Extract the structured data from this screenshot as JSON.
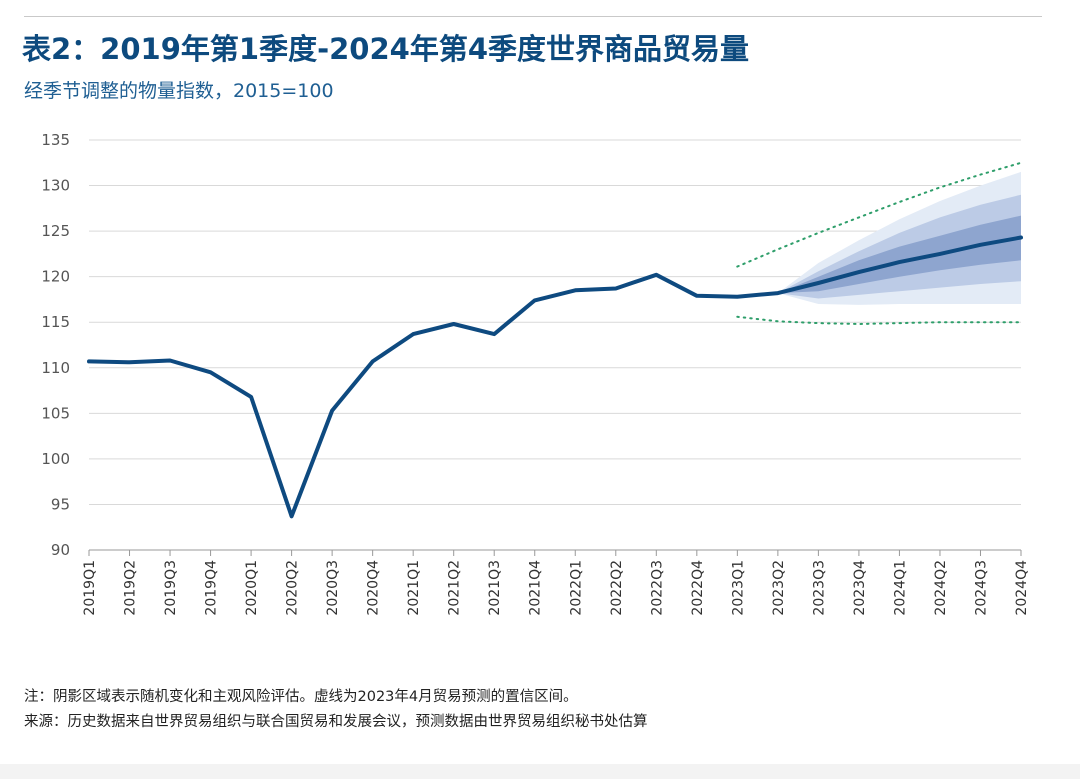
{
  "header": {
    "title": "表2：2019年第1季度-2024年第4季度世界商品贸易量",
    "subtitle": "经季节调整的物量指数，2015=100"
  },
  "footer": {
    "note": "注：阴影区域表示随机变化和主观风险评估。虚线为2023年4月贸易预测的置信区间。",
    "source": "来源：历史数据来自世界贸易组织与联合国贸易和发展会议，预测数据由世界贸易组织秘书处估算"
  },
  "colors": {
    "line": "#0e4a80",
    "band_outer": "#e3ebf6",
    "band_mid": "#bccbe6",
    "band_inner": "#8ea5cf",
    "dotted": "#2e9e6a",
    "grid": "#d9d9d9",
    "axis": "#999999",
    "tick_text": "#555555"
  },
  "chart_data": {
    "type": "line",
    "categories": [
      "2019Q1",
      "2019Q2",
      "2019Q3",
      "2019Q4",
      "2020Q1",
      "2020Q2",
      "2020Q3",
      "2020Q4",
      "2021Q1",
      "2021Q2",
      "2021Q3",
      "2021Q4",
      "2022Q1",
      "2022Q2",
      "2022Q3",
      "2022Q4",
      "2023Q1",
      "2023Q2",
      "2023Q3",
      "2023Q4",
      "2024Q1",
      "2024Q2",
      "2024Q3",
      "2024Q4"
    ],
    "ylim": [
      90,
      135
    ],
    "yticks": [
      90,
      95,
      100,
      105,
      110,
      115,
      120,
      125,
      130,
      135
    ],
    "grid": true,
    "series": [
      {
        "values": [
          110.7,
          110.6,
          110.8,
          109.5,
          106.8,
          93.7,
          105.3,
          110.7,
          113.7,
          114.8,
          113.7,
          117.4,
          118.5,
          118.7,
          120.2,
          117.9,
          117.8,
          118.2,
          119.3,
          120.5,
          121.6,
          122.5,
          123.5,
          124.3
        ]
      }
    ],
    "fan_chart": {
      "start_category": "2023Q2",
      "categories": [
        "2023Q2",
        "2023Q3",
        "2023Q4",
        "2024Q1",
        "2024Q2",
        "2024Q3",
        "2024Q4"
      ],
      "bands": [
        {
          "lower": [
            118.2,
            117.0,
            116.9,
            117.0,
            117.0,
            117.0,
            117.0
          ],
          "upper": [
            118.2,
            121.5,
            124.0,
            126.3,
            128.3,
            130.0,
            131.5
          ]
        },
        {
          "lower": [
            118.2,
            117.6,
            118.0,
            118.4,
            118.8,
            119.2,
            119.5
          ],
          "upper": [
            118.2,
            120.6,
            122.8,
            124.8,
            126.5,
            127.9,
            129.0
          ]
        },
        {
          "lower": [
            118.2,
            118.4,
            119.2,
            120.0,
            120.7,
            121.3,
            121.8
          ],
          "upper": [
            118.2,
            120.0,
            121.8,
            123.3,
            124.5,
            125.7,
            126.7
          ]
        }
      ]
    },
    "dotted_bounds": {
      "categories": [
        "2023Q1",
        "2023Q2",
        "2023Q3",
        "2023Q4",
        "2024Q1",
        "2024Q2",
        "2024Q3",
        "2024Q4"
      ],
      "upper": [
        121.1,
        123.0,
        124.8,
        126.5,
        128.2,
        129.8,
        131.2,
        132.5
      ],
      "lower": [
        115.6,
        115.1,
        114.9,
        114.8,
        114.9,
        115.0,
        115.0,
        115.0
      ]
    }
  }
}
